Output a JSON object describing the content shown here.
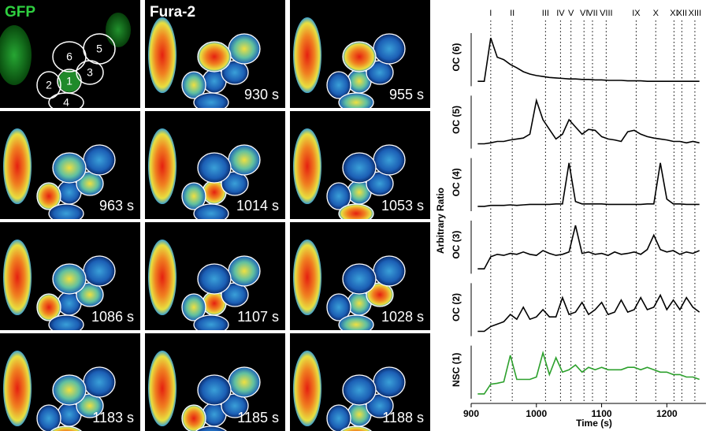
{
  "panels": [
    {
      "label": "GFP",
      "cells": [
        "1",
        "2",
        "3",
        "4",
        "5",
        "6"
      ]
    },
    {
      "label": "Fura-2",
      "time": "930 s"
    },
    {
      "time": "955 s"
    },
    {
      "time": "963 s"
    },
    {
      "time": "1014 s"
    },
    {
      "time": "1053 s"
    },
    {
      "time": "1086 s"
    },
    {
      "time": "1107 s"
    },
    {
      "time": "1028 s"
    },
    {
      "time": "1183 s"
    },
    {
      "time": "1185 s"
    },
    {
      "time": "1188 s"
    }
  ],
  "chart_data": {
    "type": "line",
    "xlabel": "Time (s)",
    "ylabel": "Arbitrary Ratio",
    "xlim": [
      900,
      1260
    ],
    "xticks": [
      900,
      1000,
      1100,
      1200
    ],
    "ylim": [
      0,
      1.1
    ],
    "events": [
      {
        "label": "I",
        "x": 930
      },
      {
        "label": "II",
        "x": 963
      },
      {
        "label": "III",
        "x": 1014
      },
      {
        "label": "IV",
        "x": 1037
      },
      {
        "label": "V",
        "x": 1053
      },
      {
        "label": "VI",
        "x": 1073
      },
      {
        "label": "VII",
        "x": 1086
      },
      {
        "label": "VIII",
        "x": 1107
      },
      {
        "label": "IX",
        "x": 1153
      },
      {
        "label": "X",
        "x": 1183
      },
      {
        "label": "XI",
        "x": 1211
      },
      {
        "label": "XII",
        "x": 1223
      },
      {
        "label": "XIII",
        "x": 1243
      }
    ],
    "x": [
      910,
      920,
      930,
      940,
      950,
      960,
      970,
      980,
      990,
      1000,
      1010,
      1020,
      1030,
      1040,
      1050,
      1060,
      1070,
      1080,
      1090,
      1100,
      1110,
      1120,
      1130,
      1140,
      1150,
      1160,
      1170,
      1180,
      1190,
      1200,
      1210,
      1220,
      1230,
      1240,
      1250
    ],
    "series": [
      {
        "name": "OC (6)",
        "color": "#000000",
        "values": [
          0.1,
          0.1,
          1.0,
          0.6,
          0.55,
          0.45,
          0.38,
          0.3,
          0.25,
          0.22,
          0.2,
          0.18,
          0.17,
          0.16,
          0.15,
          0.15,
          0.14,
          0.14,
          0.13,
          0.13,
          0.12,
          0.12,
          0.12,
          0.11,
          0.11,
          0.11,
          0.1,
          0.1,
          0.1,
          0.1,
          0.1,
          0.1,
          0.1,
          0.1,
          0.1
        ]
      },
      {
        "name": "OC (5)",
        "color": "#000000",
        "values": [
          0.1,
          0.1,
          0.12,
          0.15,
          0.15,
          0.18,
          0.2,
          0.22,
          0.3,
          1.0,
          0.6,
          0.4,
          0.2,
          0.3,
          0.6,
          0.45,
          0.3,
          0.4,
          0.38,
          0.25,
          0.2,
          0.18,
          0.15,
          0.35,
          0.38,
          0.3,
          0.25,
          0.22,
          0.2,
          0.18,
          0.15,
          0.15,
          0.12,
          0.15,
          0.12
        ]
      },
      {
        "name": "OC (4)",
        "color": "#000000",
        "values": [
          0.1,
          0.1,
          0.12,
          0.12,
          0.12,
          0.13,
          0.12,
          0.13,
          0.14,
          0.14,
          0.14,
          0.14,
          0.15,
          0.15,
          1.0,
          0.2,
          0.15,
          0.15,
          0.15,
          0.15,
          0.14,
          0.14,
          0.14,
          0.14,
          0.14,
          0.14,
          0.15,
          0.15,
          1.0,
          0.25,
          0.15,
          0.15,
          0.14,
          0.14,
          0.14
        ]
      },
      {
        "name": "OC (3)",
        "color": "#000000",
        "values": [
          0.1,
          0.1,
          0.35,
          0.4,
          0.38,
          0.42,
          0.4,
          0.45,
          0.4,
          0.38,
          0.48,
          0.42,
          0.38,
          0.4,
          0.45,
          1.0,
          0.42,
          0.45,
          0.4,
          0.42,
          0.38,
          0.45,
          0.4,
          0.42,
          0.45,
          0.4,
          0.5,
          0.8,
          0.5,
          0.45,
          0.48,
          0.4,
          0.45,
          0.42,
          0.48
        ]
      },
      {
        "name": "OC (2)",
        "color": "#000000",
        "values": [
          0.1,
          0.1,
          0.2,
          0.25,
          0.3,
          0.45,
          0.35,
          0.6,
          0.35,
          0.4,
          0.55,
          0.4,
          0.4,
          0.8,
          0.45,
          0.5,
          0.7,
          0.45,
          0.55,
          0.7,
          0.45,
          0.5,
          0.75,
          0.5,
          0.55,
          0.8,
          0.55,
          0.6,
          0.85,
          0.55,
          0.75,
          0.55,
          0.8,
          0.6,
          0.5
        ]
      },
      {
        "name": "NSC (1)",
        "color": "#2ca02c",
        "values": [
          0.1,
          0.1,
          0.3,
          0.32,
          0.35,
          0.9,
          0.4,
          0.4,
          0.4,
          0.45,
          0.95,
          0.5,
          0.85,
          0.55,
          0.6,
          0.7,
          0.55,
          0.65,
          0.6,
          0.65,
          0.6,
          0.6,
          0.6,
          0.65,
          0.65,
          0.6,
          0.65,
          0.6,
          0.55,
          0.55,
          0.5,
          0.5,
          0.45,
          0.45,
          0.4
        ]
      }
    ]
  }
}
